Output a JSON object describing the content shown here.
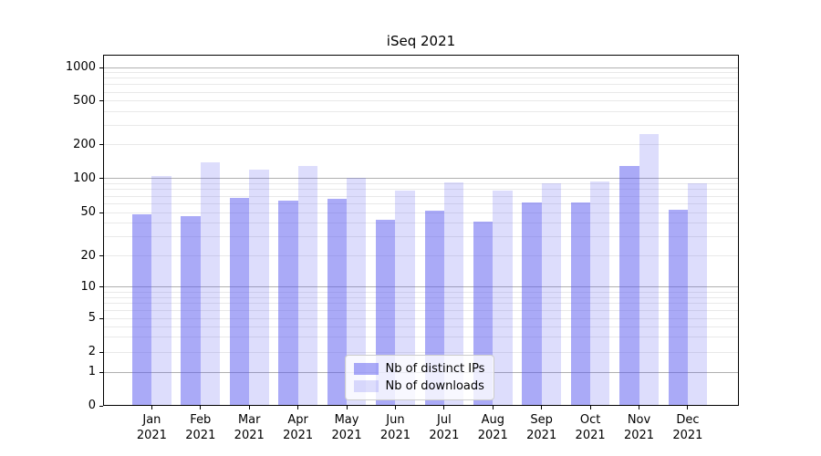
{
  "title": "iSeq 2021",
  "chart_data": {
    "type": "bar",
    "title": "iSeq 2021",
    "xlabel": "",
    "ylabel": "",
    "yscale": "symlog",
    "grid": true,
    "legend_position": "lower center",
    "categories": [
      "Jan\n2021",
      "Feb\n2021",
      "Mar\n2021",
      "Apr\n2021",
      "May\n2021",
      "Jun\n2021",
      "Jul\n2021",
      "Aug\n2021",
      "Sep\n2021",
      "Oct\n2021",
      "Nov\n2021",
      "Dec\n2021"
    ],
    "series": [
      {
        "name": "Nb of distinct IPs",
        "values": [
          48,
          46,
          67,
          64,
          66,
          43,
          52,
          41,
          61,
          61,
          131,
          53
        ]
      },
      {
        "name": "Nb of downloads",
        "values": [
          105,
          140,
          120,
          129,
          102,
          78,
          92,
          78,
          91,
          95,
          250,
          91
        ]
      }
    ],
    "yticks": [
      0,
      1,
      2,
      5,
      10,
      20,
      50,
      100,
      200,
      500,
      1000
    ],
    "ylim": [
      0,
      1310
    ]
  },
  "colors": {
    "bar_base": "85,85,240",
    "bar_alpha_ips": 0.5,
    "bar_alpha_downloads": 0.2,
    "grid_major": "#b0b0b0",
    "grid_minor": "#e9e9e9",
    "spine": "#000000",
    "text": "#000000",
    "legend_border": "#cccccc"
  }
}
